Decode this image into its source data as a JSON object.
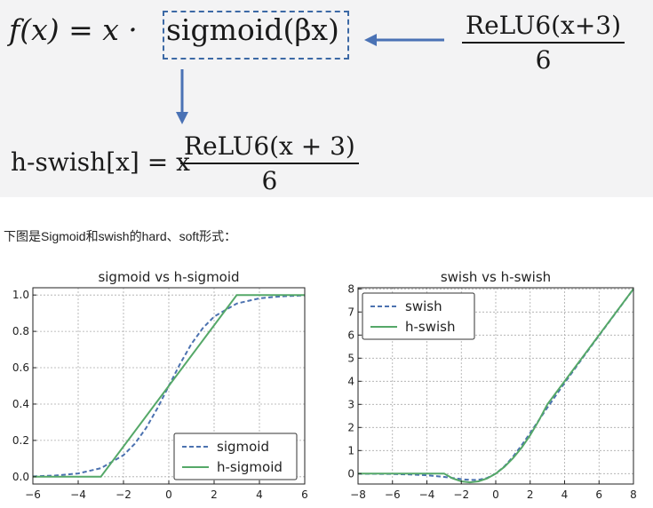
{
  "formulas": {
    "f_lhs": "f(x) = x ·",
    "sigmoid_expr": "sigmoid(βx)",
    "relu_num": "ReLU6(x+3)",
    "relu_den": "6",
    "hswish_lhs": "h-swish[x] = x",
    "hswish_num": "ReLU6(x + 3)",
    "hswish_den": "6",
    "box_color": "#3c69a5",
    "arrow_color": "#4a72b5"
  },
  "caption": "下图是Sigmoid和swish的hard、soft形式：",
  "chart_data": [
    {
      "type": "line",
      "title": "sigmoid vs h-sigmoid",
      "xlim": [
        -6,
        6
      ],
      "ylim": [
        -0.04,
        1.04
      ],
      "xticks": [
        -6,
        -4,
        -2,
        0,
        2,
        4,
        6
      ],
      "yticks": [
        0.0,
        0.2,
        0.4,
        0.6,
        0.8,
        1.0
      ],
      "xtick_labels": [
        "−6",
        "−4",
        "−2",
        "0",
        "2",
        "4",
        "6"
      ],
      "ytick_labels": [
        "0.0",
        "0.2",
        "0.4",
        "0.6",
        "0.8",
        "1.0"
      ],
      "grid": true,
      "legend_position": "lower-right",
      "series": [
        {
          "name": "sigmoid",
          "style": "dashed",
          "color": "#4c72b0",
          "x": [
            -6,
            -5,
            -4,
            -3,
            -2,
            -1.5,
            -1,
            -0.5,
            0,
            0.5,
            1,
            1.5,
            2,
            3,
            4,
            5,
            6
          ],
          "y": [
            0.002,
            0.007,
            0.018,
            0.047,
            0.119,
            0.182,
            0.269,
            0.378,
            0.5,
            0.622,
            0.731,
            0.818,
            0.881,
            0.953,
            0.982,
            0.993,
            0.998
          ]
        },
        {
          "name": "h-sigmoid",
          "style": "solid",
          "color": "#55a868",
          "x": [
            -6,
            -3,
            3,
            6
          ],
          "y": [
            0,
            0,
            1,
            1
          ]
        }
      ]
    },
    {
      "type": "line",
      "title": "swish vs h-swish",
      "xlim": [
        -8,
        8
      ],
      "ylim": [
        -0.45,
        8.05
      ],
      "xticks": [
        -8,
        -6,
        -4,
        -2,
        0,
        2,
        4,
        6,
        8
      ],
      "yticks": [
        0,
        1,
        2,
        3,
        4,
        5,
        6,
        7,
        8
      ],
      "xtick_labels": [
        "−8",
        "−6",
        "−4",
        "−2",
        "0",
        "2",
        "4",
        "6",
        "8"
      ],
      "ytick_labels": [
        "0",
        "1",
        "2",
        "3",
        "4",
        "5",
        "6",
        "7",
        "8"
      ],
      "grid": true,
      "legend_position": "upper-left",
      "series": [
        {
          "name": "swish",
          "style": "dashed",
          "color": "#4c72b0",
          "x": [
            -8,
            -6,
            -5,
            -4,
            -3,
            -2.5,
            -2,
            -1.5,
            -1,
            -0.5,
            0,
            0.5,
            1,
            1.5,
            2,
            3,
            4,
            5,
            6,
            8
          ],
          "y": [
            -0.003,
            -0.015,
            -0.033,
            -0.072,
            -0.142,
            -0.189,
            -0.238,
            -0.273,
            -0.269,
            -0.189,
            0,
            0.311,
            0.731,
            1.227,
            1.762,
            2.858,
            3.928,
            4.967,
            5.985,
            7.997
          ]
        },
        {
          "name": "h-swish",
          "style": "solid",
          "color": "#55a868",
          "x": [
            -8,
            -3,
            -2.5,
            -2,
            -1.5,
            -1,
            -0.5,
            0,
            0.5,
            1,
            1.5,
            2,
            2.5,
            3,
            8
          ],
          "y": [
            0,
            0,
            -0.208,
            -0.333,
            -0.375,
            -0.333,
            -0.208,
            0,
            0.292,
            0.667,
            1.125,
            1.667,
            2.292,
            3,
            8
          ]
        }
      ]
    }
  ]
}
